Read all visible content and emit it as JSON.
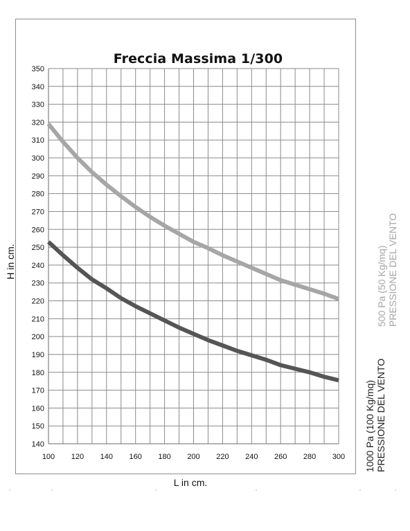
{
  "chart_data": {
    "type": "line",
    "title": "Freccia Massima 1/300",
    "xlabel": "L in cm.",
    "ylabel": "H in cm.",
    "xlim": [
      100,
      300
    ],
    "ylim": [
      140,
      350
    ],
    "grid": true,
    "x_ticks": [
      "100",
      "120",
      "140",
      "160",
      "180",
      "200",
      "220",
      "240",
      "260",
      "280",
      "300"
    ],
    "y_ticks": [
      "140",
      "150",
      "160",
      "170",
      "180",
      "190",
      "200",
      "210",
      "220",
      "230",
      "240",
      "250",
      "260",
      "270",
      "280",
      "290",
      "300",
      "310",
      "320",
      "330",
      "340",
      "350"
    ],
    "x": [
      100,
      110,
      120,
      130,
      140,
      150,
      160,
      170,
      180,
      190,
      200,
      210,
      220,
      230,
      240,
      250,
      260,
      270,
      280,
      290,
      300
    ],
    "series": [
      {
        "name": "500 Pa (50 Kg/mq) PRESSIONE DEL VENTO",
        "color": "#a6a6a6",
        "values": [
          319,
          309,
          300,
          292,
          285,
          278.5,
          272.5,
          267,
          262,
          257.5,
          253,
          249.5,
          245.5,
          242,
          238.5,
          235,
          231.5,
          229,
          226.5,
          224,
          221
        ]
      },
      {
        "name": "1000 Pa (100 Kg/mq) PRESSIONE DEL VENTO",
        "color": "#555555",
        "values": [
          253,
          245.5,
          238.5,
          232,
          227,
          221.5,
          217,
          213,
          209,
          205,
          201.5,
          198,
          195,
          192,
          189.5,
          187,
          184,
          182,
          180,
          177.5,
          175.5
        ]
      }
    ]
  },
  "legend_labels": {
    "light_line1": "500 Pa (50 Kg/mq)",
    "light_line2": "PRESSIONE DEL VENTO",
    "dark_line1": "1000 Pa (100 Kg/mq)",
    "dark_line2": "PRESSIONE DEL VENTO"
  }
}
